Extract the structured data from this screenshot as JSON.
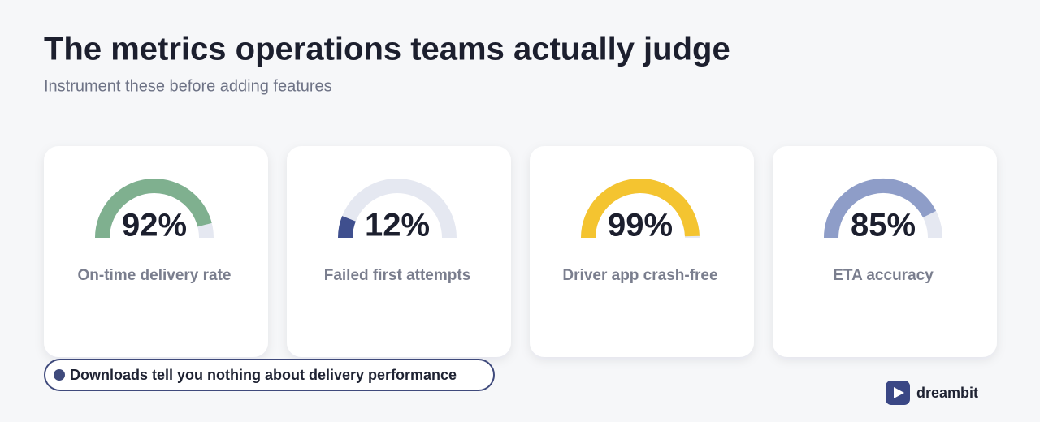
{
  "chart_data": {
    "type": "gauge",
    "title": "The metrics operations teams actually judge",
    "subtitle": "Instrument these before adding features",
    "categories": [
      "On-time delivery rate",
      "Failed first attempts",
      "Driver app crash-free",
      "ETA accuracy"
    ],
    "values": [
      92,
      12,
      99,
      85
    ],
    "value_labels": [
      "92%",
      "12%",
      "99%",
      "85%"
    ],
    "colors": [
      "#7fb08f",
      "#3f4f8e",
      "#f4c430",
      "#8e9dc8"
    ],
    "ylim": [
      0,
      100
    ]
  },
  "footer": {
    "note": "Downloads tell you nothing about delivery performance",
    "brand": "dreambit"
  }
}
